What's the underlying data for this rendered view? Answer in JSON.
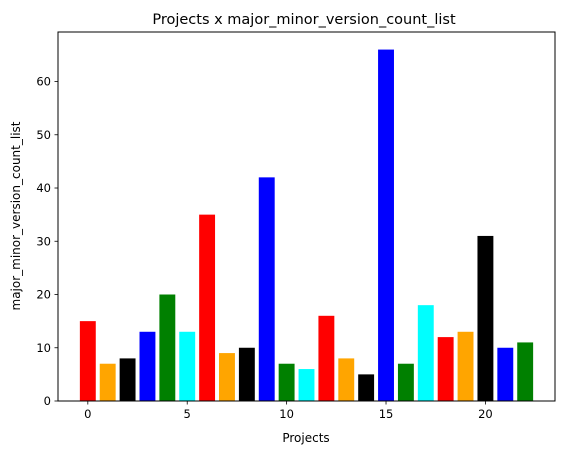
{
  "chart_data": {
    "type": "bar",
    "title": "Projects x major_minor_version_count_list",
    "xlabel": "Projects",
    "ylabel": "major_minor_version_count_list",
    "x": [
      0,
      1,
      2,
      3,
      4,
      5,
      6,
      7,
      8,
      9,
      10,
      11,
      12,
      13,
      14,
      15,
      16,
      17,
      18,
      19,
      20,
      21,
      22
    ],
    "values": [
      15,
      7,
      8,
      13,
      20,
      13,
      35,
      9,
      10,
      42,
      7,
      6,
      16,
      8,
      5,
      66,
      7,
      18,
      12,
      13,
      31,
      10,
      11
    ],
    "colors": [
      "#ff0000",
      "#ffa500",
      "#000000",
      "#0000ff",
      "#008000",
      "#00ffff",
      "#ff0000",
      "#ffa500",
      "#000000",
      "#0000ff",
      "#008000",
      "#00ffff",
      "#ff0000",
      "#ffa500",
      "#000000",
      "#0000ff",
      "#008000",
      "#00ffff",
      "#ff0000",
      "#ffa500",
      "#000000",
      "#0000ff",
      "#008000"
    ],
    "xticks": [
      0,
      5,
      10,
      15,
      20
    ],
    "yticks": [
      0,
      10,
      20,
      30,
      40,
      50,
      60
    ],
    "xlim": [
      -1.5,
      23.5
    ],
    "ylim": [
      0,
      69.3
    ],
    "grid": false,
    "legend": "none"
  }
}
